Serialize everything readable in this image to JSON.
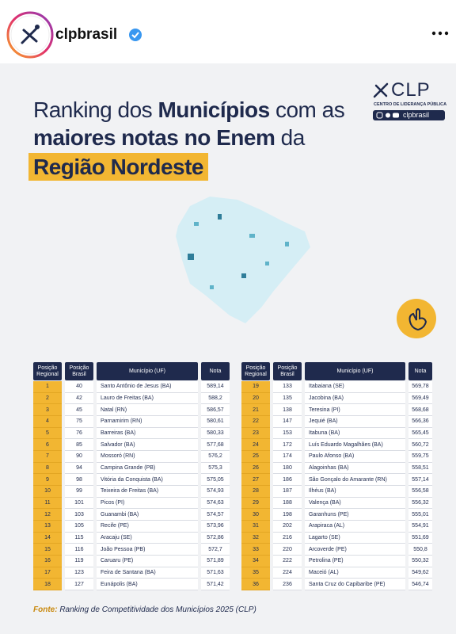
{
  "header": {
    "username": "clpbrasil"
  },
  "post": {
    "logo": {
      "name": "CLP",
      "subtitle": "CENTRO DE LIDERANÇA PÚBLICA",
      "handle": "clpbrasil"
    },
    "title": {
      "line1_a": "Ranking dos ",
      "line1_b": "Municípios",
      "line1_c": " com as",
      "line2_a": "maiores notas no Enem",
      "line2_b": " da",
      "line3": "Região Nordeste"
    },
    "table": {
      "columns": [
        "Posição Regional",
        "Posição Brasil",
        "Município (UF)",
        "Nota"
      ],
      "rows": [
        [
          1,
          40,
          "Santo Antônio de Jesus (BA)",
          "589,14"
        ],
        [
          2,
          42,
          "Lauro de Freitas (BA)",
          "588,2"
        ],
        [
          3,
          45,
          "Natal (RN)",
          "586,57"
        ],
        [
          4,
          75,
          "Parnamirim (RN)",
          "580,61"
        ],
        [
          5,
          76,
          "Barreiras (BA)",
          "580,33"
        ],
        [
          6,
          85,
          "Salvador (BA)",
          "577,68"
        ],
        [
          7,
          90,
          "Mossoró (RN)",
          "576,2"
        ],
        [
          8,
          94,
          "Campina Grande (PB)",
          "575,3"
        ],
        [
          9,
          98,
          "Vitória da Conquista (BA)",
          "575,05"
        ],
        [
          10,
          99,
          "Teixeira de Freitas (BA)",
          "574,93"
        ],
        [
          11,
          101,
          "Picos (PI)",
          "574,63"
        ],
        [
          12,
          103,
          "Guanambi (BA)",
          "574,57"
        ],
        [
          13,
          105,
          "Recife (PE)",
          "573,96"
        ],
        [
          14,
          115,
          "Aracaju (SE)",
          "572,86"
        ],
        [
          15,
          116,
          "João Pessoa (PB)",
          "572,7"
        ],
        [
          16,
          119,
          "Caruaru (PE)",
          "571,89"
        ],
        [
          17,
          123,
          "Feira de Santana (BA)",
          "571,63"
        ],
        [
          18,
          127,
          "Eunápolis (BA)",
          "571,42"
        ],
        [
          19,
          133,
          "Itabaiana (SE)",
          "569,78"
        ],
        [
          20,
          135,
          "Jacobina (BA)",
          "569,49"
        ],
        [
          21,
          138,
          "Teresina (PI)",
          "568,68"
        ],
        [
          22,
          147,
          "Jequié (BA)",
          "566,36"
        ],
        [
          23,
          153,
          "Itabuna (BA)",
          "565,45"
        ],
        [
          24,
          172,
          "Luís Eduardo Magalhães (BA)",
          "560,72"
        ],
        [
          25,
          174,
          "Paulo Afonso (BA)",
          "559,75"
        ],
        [
          26,
          180,
          "Alagoinhas (BA)",
          "558,51"
        ],
        [
          27,
          186,
          "São Gonçalo do Amarante (RN)",
          "557,14"
        ],
        [
          28,
          187,
          "Ilhéus (BA)",
          "556,58"
        ],
        [
          29,
          188,
          "Valença (BA)",
          "556,32"
        ],
        [
          30,
          198,
          "Garanhuns (PE)",
          "555,01"
        ],
        [
          31,
          202,
          "Arapiraca (AL)",
          "554,91"
        ],
        [
          32,
          216,
          "Lagarto (SE)",
          "551,69"
        ],
        [
          33,
          220,
          "Arcoverde (PE)",
          "550,8"
        ],
        [
          34,
          222,
          "Petrolina (PE)",
          "550,32"
        ],
        [
          35,
          224,
          "Maceió (AL)",
          "549,62"
        ],
        [
          36,
          236,
          "Santa Cruz do Capibaribe (PE)",
          "546,74"
        ]
      ]
    },
    "source": {
      "label": "Fonte:",
      "text": "Ranking de Competitividade dos Municípios 2025 (CLP)"
    }
  }
}
